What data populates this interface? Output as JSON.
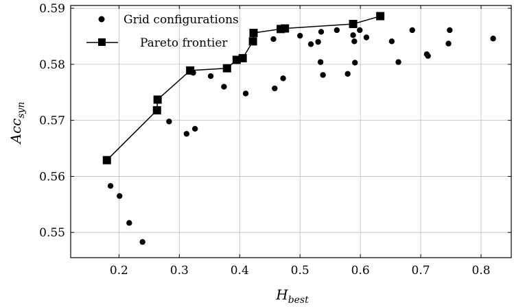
{
  "chart_data": {
    "type": "scatter",
    "title": "",
    "xlabel": "H_best",
    "ylabel": "Acc_syn",
    "xlim": [
      0.12,
      0.85
    ],
    "ylim": [
      0.5455,
      0.5905
    ],
    "x_ticks": [
      0.2,
      0.3,
      0.4,
      0.5,
      0.6,
      0.7,
      0.8
    ],
    "y_ticks": [
      0.55,
      0.56,
      0.57,
      0.58,
      0.59
    ],
    "x_tick_labels": [
      "0.2",
      "0.3",
      "0.4",
      "0.5",
      "0.6",
      "0.7",
      "0.8"
    ],
    "y_tick_labels": [
      "0.55",
      "0.56",
      "0.57",
      "0.58",
      "0.59"
    ],
    "grid": true,
    "legend_position": "top-left",
    "series": [
      {
        "name": "Grid configurations",
        "marker": "circle",
        "color": "#000000",
        "points": [
          [
            0.186,
            0.5583
          ],
          [
            0.201,
            0.5565
          ],
          [
            0.217,
            0.5517
          ],
          [
            0.239,
            0.5483
          ],
          [
            0.283,
            0.5698
          ],
          [
            0.312,
            0.5676
          ],
          [
            0.326,
            0.5685
          ],
          [
            0.323,
            0.5785
          ],
          [
            0.352,
            0.5779
          ],
          [
            0.374,
            0.576
          ],
          [
            0.41,
            0.5748
          ],
          [
            0.458,
            0.5757
          ],
          [
            0.472,
            0.5775
          ],
          [
            0.456,
            0.5845
          ],
          [
            0.5,
            0.5851
          ],
          [
            0.518,
            0.5836
          ],
          [
            0.53,
            0.584
          ],
          [
            0.535,
            0.5858
          ],
          [
            0.534,
            0.5804
          ],
          [
            0.538,
            0.5781
          ],
          [
            0.561,
            0.5861
          ],
          [
            0.579,
            0.5783
          ],
          [
            0.588,
            0.5852
          ],
          [
            0.59,
            0.5841
          ],
          [
            0.591,
            0.5803
          ],
          [
            0.599,
            0.5861
          ],
          [
            0.61,
            0.5848
          ],
          [
            0.652,
            0.5841
          ],
          [
            0.663,
            0.5804
          ],
          [
            0.686,
            0.5861
          ],
          [
            0.71,
            0.5818
          ],
          [
            0.712,
            0.5815
          ],
          [
            0.746,
            0.5837
          ],
          [
            0.748,
            0.5861
          ],
          [
            0.82,
            0.5846
          ]
        ]
      },
      {
        "name": "Pareto frontier",
        "marker": "square",
        "color": "#000000",
        "line": true,
        "points": [
          [
            0.18,
            0.5629
          ],
          [
            0.263,
            0.5718
          ],
          [
            0.264,
            0.5737
          ],
          [
            0.318,
            0.5789
          ],
          [
            0.379,
            0.5793
          ],
          [
            0.395,
            0.5808
          ],
          [
            0.405,
            0.5811
          ],
          [
            0.422,
            0.5841
          ],
          [
            0.423,
            0.5856
          ],
          [
            0.468,
            0.5863
          ],
          [
            0.475,
            0.5864
          ],
          [
            0.588,
            0.5872
          ],
          [
            0.633,
            0.5886
          ]
        ]
      }
    ]
  }
}
